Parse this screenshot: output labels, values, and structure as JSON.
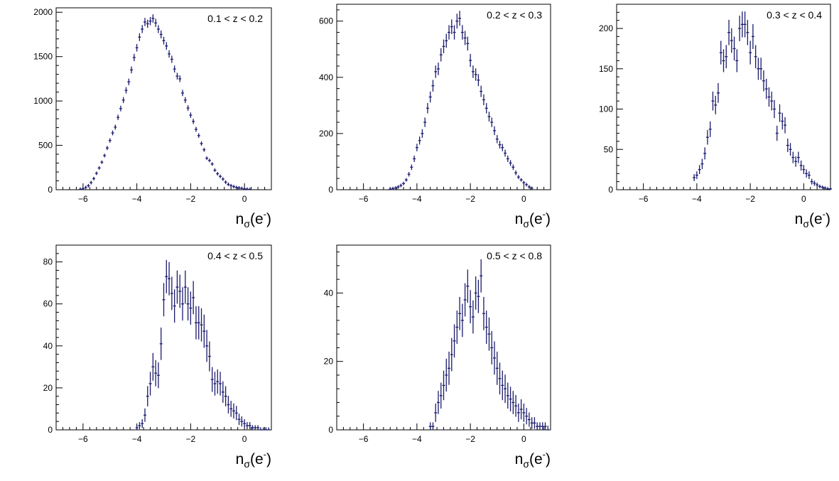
{
  "chart_data": [
    {
      "type": "scatter",
      "title": "0.1 < z < 0.2",
      "xlabel": "n_σ(e⁻)",
      "xlabel_main": "n",
      "xlabel_sub": "σ",
      "xlabel_paren": "(e",
      "xlabel_sup": "-",
      "xlabel_close": ")",
      "ylabel": "",
      "xlim": [
        -7,
        1
      ],
      "ylim": [
        0,
        2050
      ],
      "xticks": [
        -6,
        -4,
        -2,
        0
      ],
      "xtick_labels": [
        "−6",
        "−4",
        "−2",
        "0"
      ],
      "yticks": [
        0,
        500,
        1000,
        1500,
        2000
      ],
      "ytick_labels": [
        "0",
        "500",
        "1000",
        "1500",
        "2000"
      ],
      "color": "#1a1a6e",
      "series": [
        {
          "x": [
            -6.1,
            -6.0,
            -5.9,
            -5.8,
            -5.7,
            -5.6,
            -5.5,
            -5.4,
            -5.3,
            -5.2,
            -5.1,
            -5.0,
            -4.9,
            -4.8,
            -4.7,
            -4.6,
            -4.5,
            -4.4,
            -4.3,
            -4.2,
            -4.1,
            -4.0,
            -3.9,
            -3.8,
            -3.7,
            -3.6,
            -3.5,
            -3.4,
            -3.3,
            -3.2,
            -3.1,
            -3.0,
            -2.9,
            -2.8,
            -2.7,
            -2.6,
            -2.5,
            -2.4,
            -2.3,
            -2.2,
            -2.1,
            -2.0,
            -1.9,
            -1.8,
            -1.7,
            -1.6,
            -1.5,
            -1.4,
            -1.3,
            -1.2,
            -1.1,
            -1.0,
            -0.9,
            -0.8,
            -0.7,
            -0.6,
            -0.5,
            -0.4,
            -0.3,
            -0.2,
            -0.1,
            0.0,
            0.1,
            0.2
          ],
          "y": [
            5,
            12,
            25,
            45,
            80,
            125,
            185,
            245,
            310,
            385,
            470,
            555,
            640,
            705,
            815,
            915,
            1010,
            1120,
            1215,
            1350,
            1490,
            1600,
            1720,
            1810,
            1890,
            1870,
            1900,
            1930,
            1880,
            1810,
            1750,
            1680,
            1620,
            1530,
            1470,
            1360,
            1280,
            1250,
            1090,
            1010,
            920,
            840,
            770,
            680,
            610,
            520,
            450,
            355,
            330,
            290,
            220,
            180,
            150,
            120,
            85,
            60,
            45,
            35,
            25,
            20,
            15,
            10,
            6,
            3
          ]
        }
      ]
    },
    {
      "type": "scatter",
      "title": "0.2 < z < 0.3",
      "xlabel": "n_σ(e⁻)",
      "xlabel_main": "n",
      "xlabel_sub": "σ",
      "xlabel_paren": "(e",
      "xlabel_sup": "-",
      "xlabel_close": ")",
      "ylabel": "",
      "xlim": [
        -7,
        1
      ],
      "ylim": [
        0,
        660
      ],
      "xticks": [
        -6,
        -4,
        -2,
        0
      ],
      "xtick_labels": [
        "−6",
        "−4",
        "−2",
        "0"
      ],
      "yticks": [
        0,
        200,
        400,
        600
      ],
      "ytick_labels": [
        "0",
        "200",
        "400",
        "600"
      ],
      "color": "#1a1a6e",
      "series": [
        {
          "x": [
            -5.0,
            -4.9,
            -4.8,
            -4.7,
            -4.6,
            -4.5,
            -4.4,
            -4.3,
            -4.2,
            -4.1,
            -4.0,
            -3.9,
            -3.8,
            -3.7,
            -3.6,
            -3.5,
            -3.4,
            -3.3,
            -3.2,
            -3.1,
            -3.0,
            -2.9,
            -2.8,
            -2.7,
            -2.6,
            -2.5,
            -2.4,
            -2.3,
            -2.2,
            -2.1,
            -2.0,
            -1.9,
            -1.8,
            -1.7,
            -1.6,
            -1.5,
            -1.4,
            -1.3,
            -1.2,
            -1.1,
            -1.0,
            -0.9,
            -0.8,
            -0.7,
            -0.6,
            -0.5,
            -0.4,
            -0.3,
            -0.2,
            -0.1,
            0.0,
            0.1,
            0.2,
            0.3
          ],
          "y": [
            2,
            4,
            6,
            10,
            15,
            22,
            35,
            55,
            80,
            110,
            150,
            175,
            200,
            240,
            290,
            330,
            370,
            420,
            430,
            480,
            510,
            530,
            560,
            580,
            560,
            600,
            610,
            560,
            540,
            520,
            460,
            420,
            410,
            390,
            350,
            320,
            290,
            260,
            240,
            210,
            180,
            160,
            150,
            130,
            110,
            95,
            80,
            60,
            45,
            35,
            25,
            18,
            10,
            5
          ]
        }
      ]
    },
    {
      "type": "scatter",
      "title": "0.3 < z < 0.4",
      "xlabel": "n_σ(e⁻)",
      "xlabel_main": "n",
      "xlabel_sub": "σ",
      "xlabel_paren": "(e",
      "xlabel_sup": "-",
      "xlabel_close": ")",
      "ylabel": "",
      "xlim": [
        -7,
        1
      ],
      "ylim": [
        0,
        230
      ],
      "xticks": [
        -6,
        -4,
        -2,
        0
      ],
      "xtick_labels": [
        "−6",
        "−4",
        "−2",
        "0"
      ],
      "yticks": [
        0,
        50,
        100,
        150,
        200
      ],
      "ytick_labels": [
        "0",
        "50",
        "100",
        "150",
        "200"
      ],
      "color": "#1a1a6e",
      "series": [
        {
          "x": [
            -4.1,
            -4.0,
            -3.9,
            -3.8,
            -3.7,
            -3.6,
            -3.5,
            -3.4,
            -3.3,
            -3.2,
            -3.1,
            -3.0,
            -2.9,
            -2.8,
            -2.7,
            -2.6,
            -2.5,
            -2.4,
            -2.3,
            -2.2,
            -2.1,
            -2.0,
            -1.9,
            -1.8,
            -1.7,
            -1.6,
            -1.5,
            -1.4,
            -1.3,
            -1.2,
            -1.1,
            -1.0,
            -0.9,
            -0.8,
            -0.7,
            -0.6,
            -0.5,
            -0.4,
            -0.3,
            -0.2,
            -0.1,
            0.0,
            0.1,
            0.2,
            0.3,
            0.4,
            0.5,
            0.6,
            0.7,
            0.8,
            0.9,
            1.0
          ],
          "y": [
            15,
            18,
            25,
            32,
            45,
            65,
            75,
            110,
            105,
            120,
            170,
            160,
            165,
            195,
            185,
            175,
            160,
            200,
            205,
            205,
            195,
            170,
            190,
            165,
            150,
            150,
            135,
            125,
            115,
            110,
            100,
            70,
            95,
            85,
            80,
            55,
            50,
            40,
            35,
            40,
            30,
            25,
            20,
            18,
            10,
            8,
            6,
            4,
            3,
            2,
            1,
            1
          ]
        }
      ]
    },
    {
      "type": "scatter",
      "title": "0.4 < z < 0.5",
      "xlabel": "n_σ(e⁻)",
      "xlabel_main": "n",
      "xlabel_sub": "σ",
      "xlabel_paren": "(e",
      "xlabel_sup": "-",
      "xlabel_close": ")",
      "ylabel": "",
      "xlim": [
        -7,
        1
      ],
      "ylim": [
        0,
        88
      ],
      "xticks": [
        -6,
        -4,
        -2,
        0
      ],
      "xtick_labels": [
        "−6",
        "−4",
        "−2",
        "0"
      ],
      "yticks": [
        0,
        20,
        40,
        60,
        80
      ],
      "ytick_labels": [
        "0",
        "20",
        "40",
        "60",
        "80"
      ],
      "color": "#1a1a6e",
      "series": [
        {
          "x": [
            -4.0,
            -3.9,
            -3.8,
            -3.7,
            -3.6,
            -3.5,
            -3.4,
            -3.3,
            -3.2,
            -3.1,
            -3.0,
            -2.9,
            -2.8,
            -2.7,
            -2.6,
            -2.5,
            -2.4,
            -2.3,
            -2.2,
            -2.1,
            -2.0,
            -1.9,
            -1.8,
            -1.7,
            -1.6,
            -1.5,
            -1.4,
            -1.3,
            -1.2,
            -1.1,
            -1.0,
            -0.9,
            -0.8,
            -0.7,
            -0.6,
            -0.5,
            -0.4,
            -0.3,
            -0.2,
            -0.1,
            0.0,
            0.1,
            0.2,
            0.3,
            0.4,
            0.5,
            0.6,
            0.7,
            0.8,
            0.9
          ],
          "y": [
            1,
            2,
            3,
            7,
            16,
            22,
            30,
            27,
            26,
            41,
            62,
            73,
            72,
            65,
            59,
            68,
            66,
            60,
            68,
            60,
            58,
            63,
            51,
            51,
            50,
            47,
            40,
            35,
            24,
            22,
            23,
            22,
            18,
            16,
            12,
            10,
            9,
            8,
            5,
            4,
            3,
            2,
            2,
            1,
            1,
            1,
            0,
            0,
            0,
            0
          ]
        }
      ]
    },
    {
      "type": "scatter",
      "title": "0.5 < z < 0.8",
      "xlabel": "n_σ(e⁻)",
      "xlabel_main": "n",
      "xlabel_sub": "σ",
      "xlabel_paren": "(e",
      "xlabel_sup": "-",
      "xlabel_close": ")",
      "ylabel": "",
      "xlim": [
        -7,
        1
      ],
      "ylim": [
        0,
        54
      ],
      "xticks": [
        -6,
        -4,
        -2,
        0
      ],
      "xtick_labels": [
        "−6",
        "−4",
        "−2",
        "0"
      ],
      "yticks": [
        0,
        20,
        40
      ],
      "ytick_labels": [
        "0",
        "20",
        "40"
      ],
      "color": "#1a1a6e",
      "series": [
        {
          "x": [
            -3.5,
            -3.4,
            -3.3,
            -3.2,
            -3.1,
            -3.0,
            -2.9,
            -2.8,
            -2.7,
            -2.6,
            -2.5,
            -2.4,
            -2.3,
            -2.2,
            -2.1,
            -2.0,
            -1.9,
            -1.8,
            -1.7,
            -1.6,
            -1.5,
            -1.4,
            -1.3,
            -1.2,
            -1.1,
            -1.0,
            -0.9,
            -0.8,
            -0.7,
            -0.6,
            -0.5,
            -0.4,
            -0.3,
            -0.2,
            -0.1,
            0.0,
            0.1,
            0.2,
            0.3,
            0.4,
            0.5,
            0.6,
            0.7,
            0.8,
            0.9
          ],
          "y": [
            1,
            1,
            5,
            8,
            10,
            13,
            16,
            18,
            22,
            26,
            30,
            34,
            32,
            38,
            42,
            36,
            33,
            40,
            39,
            45,
            34,
            30,
            28,
            24,
            21,
            18,
            15,
            13,
            12,
            10,
            9,
            8,
            7,
            5,
            6,
            5,
            4,
            3,
            2,
            2,
            1,
            1,
            1,
            1,
            0
          ]
        }
      ]
    }
  ]
}
